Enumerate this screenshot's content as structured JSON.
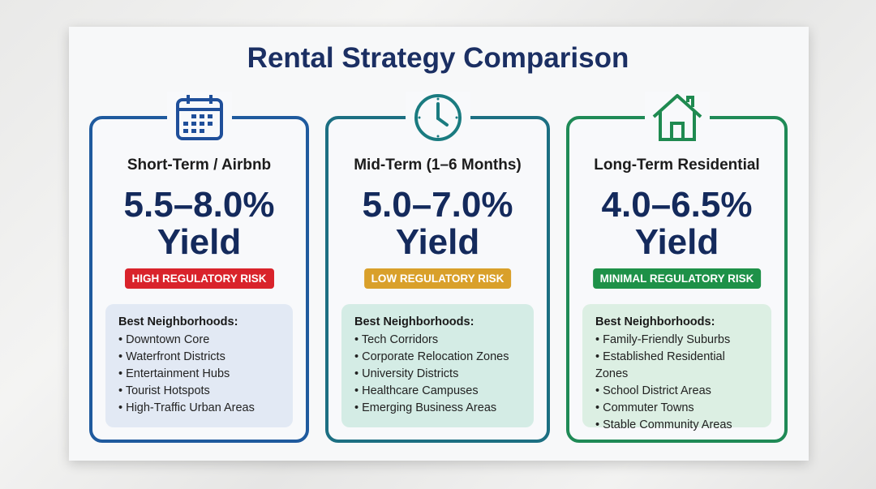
{
  "title": "Rental Strategy Comparison",
  "cards": [
    {
      "icon": "calendar-icon",
      "title": "Short-Term / Airbnb",
      "yield_range": "5.5–8.0%",
      "yield_label": "Yield",
      "risk": "HIGH REGULATORY RISK",
      "risk_color": "#d9232b",
      "heading": "Best Neighborhoods:",
      "items": [
        "Downtown Core",
        "Waterfront Districts",
        "Entertainment Hubs",
        "Tourist Hotspots",
        "High-Traffic Urban Areas"
      ]
    },
    {
      "icon": "clock-icon",
      "title": "Mid-Term (1–6 Months)",
      "yield_range": "5.0–7.0%",
      "yield_label": "Yield",
      "risk": "LOW REGULATORY RISK",
      "risk_color": "#d9a02a",
      "heading": "Best Neighborhoods:",
      "items": [
        "Tech Corridors",
        "Corporate Relocation Zones",
        "University Districts",
        "Healthcare Campuses",
        "Emerging Business Areas"
      ]
    },
    {
      "icon": "house-icon",
      "title": "Long-Term Residential",
      "yield_range": "4.0–6.5%",
      "yield_label": "Yield",
      "risk": "MINIMAL REGULATORY RISK",
      "risk_color": "#1e9148",
      "heading": "Best Neighborhoods:",
      "items": [
        "Family-Friendly Suburbs",
        "Established Residential Zones",
        "School District Areas",
        "Commuter Towns",
        "Stable Community Areas"
      ]
    }
  ]
}
